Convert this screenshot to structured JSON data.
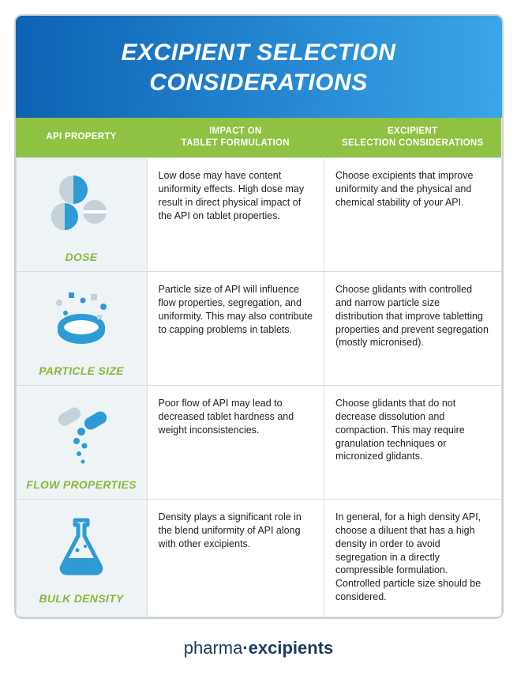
{
  "title_line1": "EXCIPIENT SELECTION",
  "title_line2": "CONSIDERATIONS",
  "header_gradient_from": "#0d62b4",
  "header_gradient_to": "#3aa5e8",
  "col_header_bg": "#8fc143",
  "col1": "API PROPERTY",
  "col2_line1": "IMPACT ON",
  "col2_line2": "TABLET FORMULATION",
  "col3_line1": "EXCIPIENT",
  "col3_line2": "SELECTION CONSIDERATIONS",
  "icon_primary": "#2d9bd6",
  "icon_secondary": "#c6d2da",
  "label_color": "#88b93a",
  "rows": [
    {
      "label": "DOSE",
      "impact": "Low dose may have content uniformity effects. High dose may result in direct physical impact of the API on tablet properties.",
      "consider": "Choose excipients that improve uniformity and the physical and chemical stability of your API."
    },
    {
      "label": "PARTICLE SIZE",
      "impact": "Particle size of API will influence flow properties, segregation, and uniformity. This may also contribute to capping problems in tablets.",
      "consider": "Choose glidants with controlled and narrow particle size distribution that improve tabletting properties and prevent segregation (mostly micronised)."
    },
    {
      "label": "FLOW PROPERTIES",
      "impact": "Poor flow of API may lead to decreased tablet hardness and weight inconsistencies.",
      "consider": "Choose glidants that do not decrease dissolution and compaction. This may require granulation techniques or micronized glidants."
    },
    {
      "label": "BULK DENSITY",
      "impact": "Density plays a significant role in the blend uniformity of API along with other excipients.",
      "consider": "In general, for a high density API, choose a diluent that has a high density in order to avoid segregation in a directly compressible formulation. Controlled particle size should be considered."
    }
  ],
  "footer_pre": "pharma",
  "footer_sep": "·",
  "footer_post": "excipients"
}
